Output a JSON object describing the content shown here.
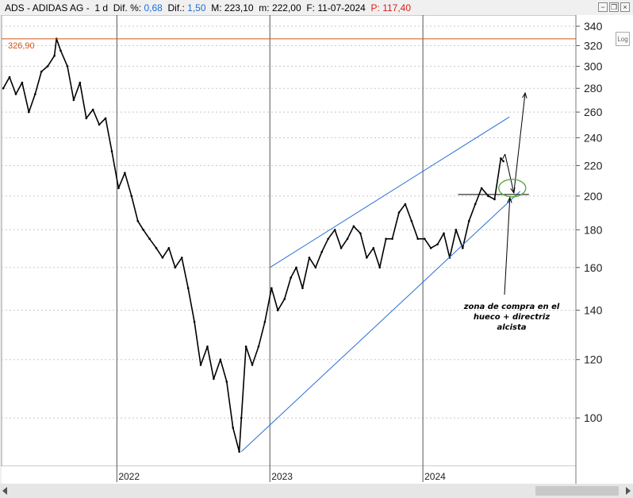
{
  "header": {
    "symbol": "ADS",
    "sep1": " - ",
    "name": "ADIDAS AG",
    "sep2": " - ",
    "timeframe": "1 d",
    "dif_pct_label": "Dif. %:",
    "dif_pct_value": "0,68",
    "dif_label": "Dif.:",
    "dif_value": "1,50",
    "m_high_label": "M:",
    "m_high_value": "223,10",
    "m_low_label": "m:",
    "m_low_value": "222,00",
    "date_label": "F:",
    "date_value": "11-07-2024",
    "p_label": "P:",
    "p_value": "117,40"
  },
  "window_controls": {
    "minimize": "−",
    "restore": "❐",
    "close": "×"
  },
  "log_button": "Log",
  "price_tag": "326,90",
  "annotation": "zona de compra en el\nhueco + directriz\nalcista",
  "colors": {
    "price_line": "#000000",
    "trend_lines": "#2a6fd6",
    "horizontal_level": "#d4531c",
    "buy_zone_circle": "#5aa642",
    "grid": "#c8c8c8"
  },
  "chart_data": {
    "type": "line",
    "title": "ADS - ADIDAS AG - 1 d",
    "y_scale": "log",
    "ylim": [
      86,
      352
    ],
    "xlim": [
      "2021-04-01",
      "2024-12-31"
    ],
    "y_ticks": [
      100,
      120,
      140,
      160,
      180,
      200,
      220,
      240,
      260,
      280,
      300,
      320,
      340
    ],
    "x_ticks": [
      {
        "date": "2022-01-01",
        "label": "2022"
      },
      {
        "date": "2023-01-01",
        "label": "2023"
      },
      {
        "date": "2024-01-01",
        "label": "2024"
      }
    ],
    "grid": true,
    "series": [
      {
        "x": [
          "2021-04-05",
          "2021-04-20",
          "2021-05-05",
          "2021-05-20",
          "2021-06-05",
          "2021-06-20",
          "2021-07-05",
          "2021-07-20",
          "2021-08-05",
          "2021-08-10",
          "2021-08-20",
          "2021-09-05",
          "2021-09-20",
          "2021-10-05",
          "2021-10-20",
          "2021-11-05",
          "2021-11-20",
          "2021-12-05",
          "2021-12-20",
          "2022-01-05",
          "2022-01-20",
          "2022-02-05",
          "2022-02-20",
          "2022-03-05",
          "2022-03-20",
          "2022-04-05",
          "2022-04-20",
          "2022-05-05",
          "2022-05-20",
          "2022-06-05",
          "2022-06-20",
          "2022-07-05",
          "2022-07-20",
          "2022-08-05",
          "2022-08-20",
          "2022-09-05",
          "2022-09-20",
          "2022-10-05",
          "2022-10-20",
          "2022-10-25",
          "2022-11-05",
          "2022-11-20",
          "2022-12-05",
          "2022-12-20",
          "2023-01-05",
          "2023-01-20",
          "2023-02-05",
          "2023-02-20",
          "2023-03-05",
          "2023-03-20",
          "2023-04-05",
          "2023-04-20",
          "2023-05-05",
          "2023-05-20",
          "2023-06-05",
          "2023-06-20",
          "2023-07-05",
          "2023-07-20",
          "2023-08-05",
          "2023-08-20",
          "2023-09-05",
          "2023-09-20",
          "2023-10-05",
          "2023-10-20",
          "2023-11-05",
          "2023-11-20",
          "2023-12-05",
          "2023-12-20",
          "2024-01-05",
          "2024-01-20",
          "2024-02-05",
          "2024-02-20",
          "2024-03-05",
          "2024-03-20",
          "2024-04-05",
          "2024-04-20",
          "2024-05-05",
          "2024-05-20",
          "2024-06-05",
          "2024-06-20",
          "2024-07-05",
          "2024-07-11"
        ],
        "values": [
          280,
          290,
          275,
          285,
          260,
          275,
          295,
          300,
          310,
          327,
          315,
          300,
          270,
          285,
          255,
          262,
          250,
          255,
          230,
          205,
          215,
          200,
          185,
          180,
          175,
          170,
          165,
          170,
          160,
          165,
          150,
          135,
          118,
          125,
          113,
          120,
          112,
          97,
          90,
          100,
          125,
          118,
          125,
          135,
          150,
          140,
          145,
          155,
          160,
          150,
          165,
          160,
          168,
          175,
          180,
          170,
          175,
          182,
          178,
          165,
          170,
          160,
          175,
          175,
          190,
          195,
          185,
          175,
          175,
          170,
          172,
          178,
          165,
          180,
          170,
          185,
          195,
          205,
          200,
          198,
          225,
          223
        ]
      }
    ],
    "horizontal_line": {
      "y": 326.9,
      "label": "326,90"
    },
    "trendlines": [
      {
        "from": {
          "x": "2022-10-25",
          "y": 90
        },
        "to": {
          "x": "2024-08-20",
          "y": 203
        }
      },
      {
        "from": {
          "x": "2023-01-01",
          "y": 160
        },
        "to": {
          "x": "2024-07-25",
          "y": 256
        }
      }
    ],
    "support_line": {
      "from": {
        "x": "2024-03-25",
        "y": 201
      },
      "to": {
        "x": "2024-09-10",
        "y": 201
      }
    },
    "forecast_path": [
      {
        "x": "2024-07-15",
        "y": 228
      },
      {
        "x": "2024-08-05",
        "y": 202
      },
      {
        "x": "2024-09-01",
        "y": 276
      }
    ],
    "buy_zone": {
      "x": "2024-08-05",
      "y": 203
    }
  }
}
